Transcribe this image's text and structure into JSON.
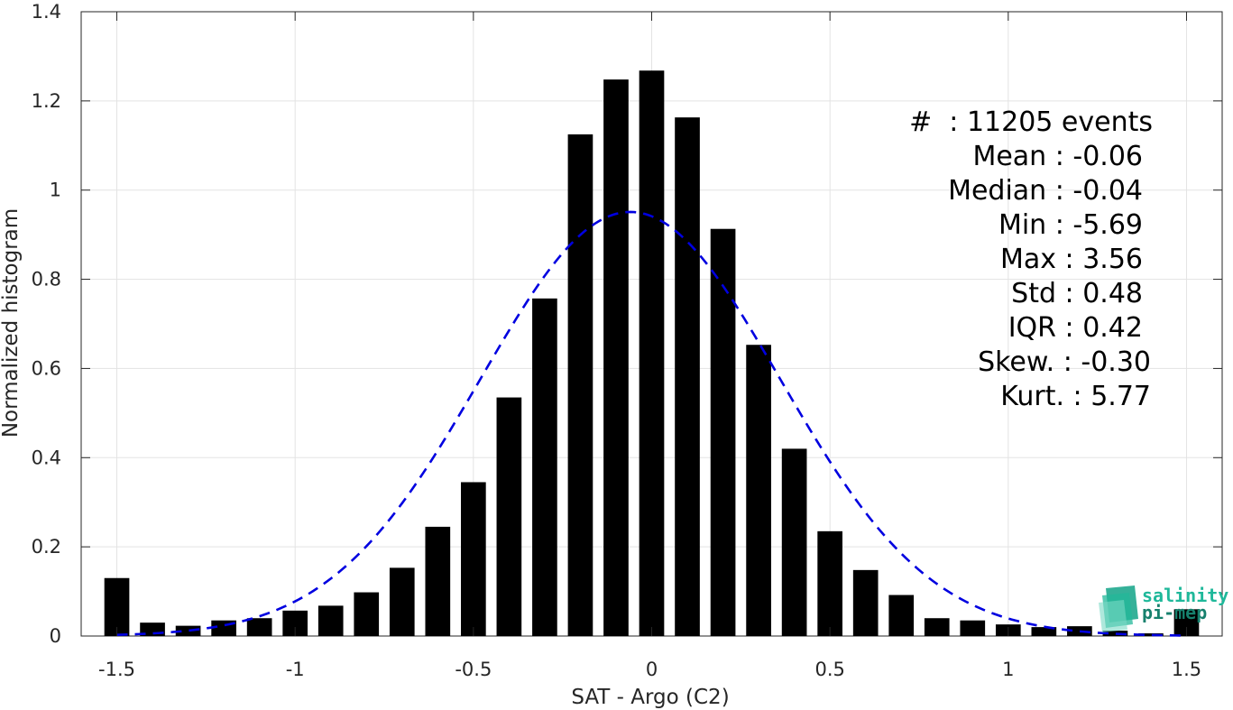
{
  "chart_data": {
    "type": "bar",
    "xlabel": "SAT - Argo (C2)",
    "ylabel": "Normalized histogram",
    "xlim": [
      -1.6,
      1.6
    ],
    "ylim": [
      0,
      1.4
    ],
    "grid": true,
    "xticks": [
      -1.5,
      -1,
      -0.5,
      0,
      0.5,
      1,
      1.5
    ],
    "xtick_labels": [
      "-1.5",
      "-1",
      "-0.5",
      "0",
      "0.5",
      "1",
      "1.5"
    ],
    "yticks": [
      0,
      0.2,
      0.4,
      0.6,
      0.8,
      1,
      1.2,
      1.4
    ],
    "ytick_labels": [
      "0",
      "0.2",
      "0.4",
      "0.6",
      "0.8",
      "1",
      "1.2",
      "1.4"
    ],
    "bar_color": "#000000",
    "bins": [
      -1.5,
      -1.4,
      -1.3,
      -1.2,
      -1.1,
      -1.0,
      -0.9,
      -0.8,
      -0.7,
      -0.6,
      -0.5,
      -0.4,
      -0.3,
      -0.2,
      -0.1,
      0.0,
      0.1,
      0.2,
      0.3,
      0.4,
      0.5,
      0.6,
      0.7,
      0.8,
      0.9,
      1.0,
      1.1,
      1.2,
      1.3,
      1.4,
      1.5
    ],
    "values": [
      0.13,
      0.03,
      0.023,
      0.035,
      0.04,
      0.057,
      0.068,
      0.098,
      0.153,
      0.245,
      0.345,
      0.535,
      0.757,
      1.125,
      1.248,
      1.268,
      1.163,
      0.913,
      0.653,
      0.42,
      0.235,
      0.148,
      0.092,
      0.04,
      0.035,
      0.026,
      0.02,
      0.022,
      0.012,
      0.006,
      0.06
    ],
    "fit": {
      "type": "gaussian",
      "mean": -0.06,
      "std": 0.42,
      "peak": 0.951,
      "color": "#0000e0",
      "style": "dashed"
    },
    "stats": [
      {
        "name": "#",
        "value": "11205 events"
      },
      {
        "name": "Mean",
        "value": "-0.06"
      },
      {
        "name": "Median",
        "value": "-0.04"
      },
      {
        "name": "Min",
        "value": "-5.69"
      },
      {
        "name": "Max",
        "value": "3.56"
      },
      {
        "name": "Std",
        "value": "0.48"
      },
      {
        "name": "IQR",
        "value": "0.42"
      },
      {
        "name": "Skew.",
        "value": "-0.30"
      },
      {
        "name": "Kurt.",
        "value": "5.77"
      }
    ]
  },
  "stats_text": {
    "count": "#  : 11205 events",
    "mean": "Mean : -0.06",
    "median": "Median : -0.04",
    "min": "Min : -5.69",
    "max": "Max : 3.56",
    "std": "Std : 0.48",
    "iqr": "IQR : 0.42",
    "skew": "Skew. : -0.30",
    "kurt": "Kurt. : 5.77"
  },
  "logo": {
    "line1": "salinity",
    "line2": "pi-mep",
    "color1": "#1fb89a",
    "color2": "#16806d"
  }
}
